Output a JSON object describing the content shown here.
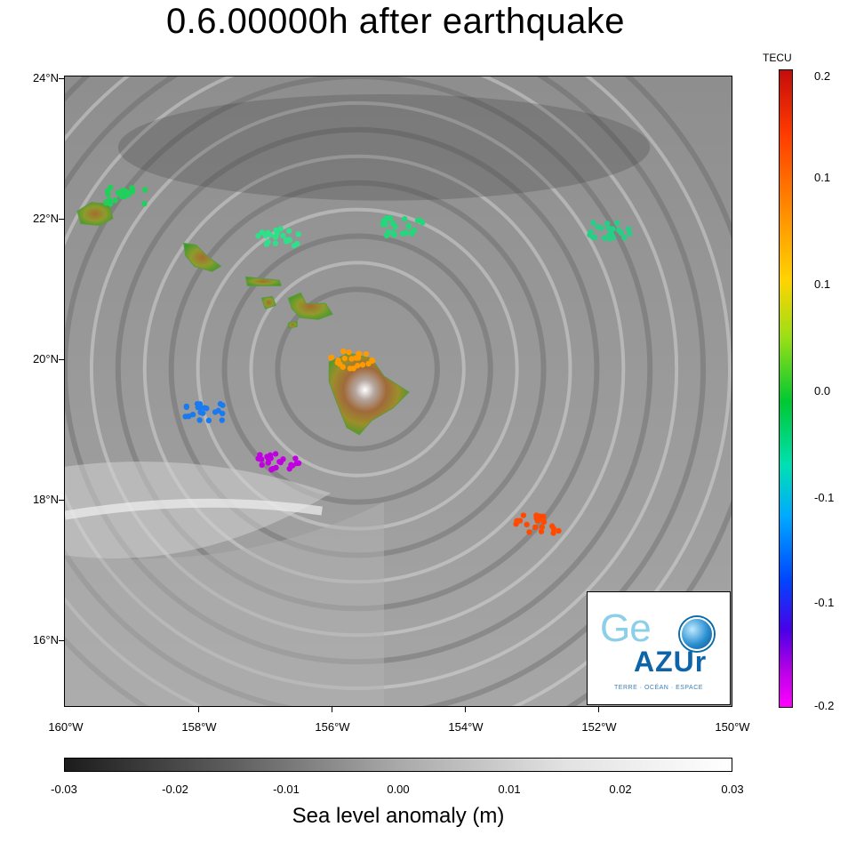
{
  "title": "0.6.00000h after earthquake",
  "map": {
    "lat_labels": [
      "24°N",
      "22°N",
      "20°N",
      "18°N",
      "16°N"
    ],
    "lon_labels": [
      "160°W",
      "158°W",
      "156°W",
      "154°W",
      "152°W",
      "150°W"
    ],
    "lon_range": [
      -160,
      -150
    ],
    "lat_range": [
      15,
      24
    ],
    "islands": [
      "Kauai",
      "Oahu",
      "Molokai",
      "Lanai",
      "Maui",
      "Kahoolawe",
      "Hawaii"
    ],
    "gps_clusters": [
      {
        "lon": -159.1,
        "lat": 22.3,
        "color": "#1fd05a"
      },
      {
        "lon": -156.8,
        "lat": 21.7,
        "color": "#2ee08a"
      },
      {
        "lon": -154.9,
        "lat": 21.85,
        "color": "#22d87a"
      },
      {
        "lon": -151.8,
        "lat": 21.8,
        "color": "#25cf86"
      },
      {
        "lon": -155.7,
        "lat": 19.95,
        "color": "#ff9a00"
      },
      {
        "lon": -157.9,
        "lat": 19.2,
        "color": "#1a7af0"
      },
      {
        "lon": -156.8,
        "lat": 18.5,
        "color": "#c000e0"
      },
      {
        "lon": -152.9,
        "lat": 17.6,
        "color": "#ff4a00"
      }
    ]
  },
  "tecu_scale": {
    "unit": "TECU",
    "labels": [
      "0.2",
      "0.1",
      "0.1",
      "0.0",
      "-0.1",
      "-0.1",
      "-0.2"
    ]
  },
  "sla_scale": {
    "title": "Sea level anomaly (m)",
    "labels": [
      "-0.03",
      "-0.02",
      "-0.01",
      "0.00",
      "0.01",
      "0.02",
      "0.03"
    ]
  },
  "logo": {
    "geo": "Ge",
    "azur": "AZUr",
    "tagline": "TERRE · OCÉAN · ESPACE"
  }
}
